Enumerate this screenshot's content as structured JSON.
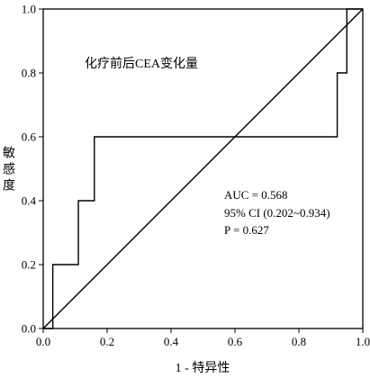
{
  "chart_data": {
    "type": "line",
    "title": "化疗前后CEA变化量",
    "xlabel": "1 - 特异性",
    "ylabel": "敏感度",
    "xlim": [
      0,
      1
    ],
    "ylim": [
      0,
      1
    ],
    "x_ticks": [
      "0.0",
      "0.2",
      "0.4",
      "0.6",
      "0.8",
      "1.0"
    ],
    "y_ticks": [
      "0.0",
      "0.2",
      "0.4",
      "0.6",
      "0.8",
      "1.0"
    ],
    "grid": false,
    "legend": "none",
    "series": [
      {
        "x": [
          0,
          0.03,
          0.03,
          0.11,
          0.11,
          0.16,
          0.16,
          0.92,
          0.92,
          0.95,
          0.95,
          1.0
        ],
        "y": [
          0,
          0,
          0.2,
          0.2,
          0.4,
          0.4,
          0.6,
          0.6,
          0.8,
          0.8,
          1.0,
          1.0
        ],
        "color": "#000000"
      },
      {
        "x": [
          0,
          1
        ],
        "y": [
          0,
          1
        ],
        "color": "#000000"
      }
    ],
    "annotations": [
      "AUC = 0.568",
      "95% CI (0.202~0.934)",
      "P = 0.627"
    ]
  }
}
